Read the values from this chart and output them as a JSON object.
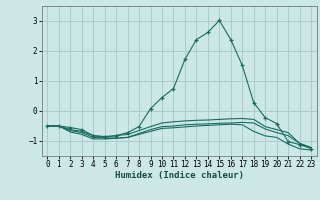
{
  "xlabel": "Humidex (Indice chaleur)",
  "ylabel": "",
  "xlim": [
    -0.5,
    23.5
  ],
  "ylim": [
    -1.5,
    3.5
  ],
  "yticks": [
    -1,
    0,
    1,
    2,
    3
  ],
  "xticks": [
    0,
    1,
    2,
    3,
    4,
    5,
    6,
    7,
    8,
    9,
    10,
    11,
    12,
    13,
    14,
    15,
    16,
    17,
    18,
    19,
    20,
    21,
    22,
    23
  ],
  "bg_color": "#cce8e6",
  "grid_color": "#aaccca",
  "line_color": "#1a6b5e",
  "series": [
    {
      "x": [
        0,
        1,
        2,
        3,
        4,
        5,
        6,
        7,
        8,
        9,
        10,
        11,
        12,
        13,
        14,
        15,
        16,
        17,
        18,
        19,
        20,
        21,
        22,
        23
      ],
      "y": [
        -0.5,
        -0.5,
        -0.55,
        -0.62,
        -0.82,
        -0.88,
        -0.82,
        -0.72,
        -0.52,
        0.08,
        0.45,
        0.75,
        1.72,
        2.38,
        2.62,
        3.02,
        2.38,
        1.52,
        0.28,
        -0.22,
        -0.42,
        -1.02,
        -1.12,
        -1.25
      ],
      "marker": "+"
    },
    {
      "x": [
        0,
        1,
        2,
        3,
        4,
        5,
        6,
        7,
        8,
        9,
        10,
        11,
        12,
        13,
        14,
        15,
        16,
        17,
        18,
        19,
        20,
        21,
        22,
        23
      ],
      "y": [
        -0.5,
        -0.5,
        -0.62,
        -0.68,
        -0.82,
        -0.85,
        -0.82,
        -0.78,
        -0.65,
        -0.52,
        -0.4,
        -0.36,
        -0.33,
        -0.31,
        -0.3,
        -0.28,
        -0.26,
        -0.25,
        -0.28,
        -0.52,
        -0.62,
        -0.72,
        -1.08,
        -1.22
      ],
      "marker": null
    },
    {
      "x": [
        0,
        1,
        2,
        3,
        4,
        5,
        6,
        7,
        8,
        9,
        10,
        11,
        12,
        13,
        14,
        15,
        16,
        17,
        18,
        19,
        20,
        21,
        22,
        23
      ],
      "y": [
        -0.5,
        -0.5,
        -0.65,
        -0.72,
        -0.88,
        -0.9,
        -0.9,
        -0.88,
        -0.75,
        -0.62,
        -0.52,
        -0.5,
        -0.46,
        -0.44,
        -0.43,
        -0.41,
        -0.4,
        -0.38,
        -0.4,
        -0.6,
        -0.72,
        -0.82,
        -1.08,
        -1.22
      ],
      "marker": null
    },
    {
      "x": [
        0,
        1,
        2,
        3,
        4,
        5,
        6,
        7,
        8,
        9,
        10,
        11,
        12,
        13,
        14,
        15,
        16,
        17,
        18,
        19,
        20,
        21,
        22,
        23
      ],
      "y": [
        -0.5,
        -0.5,
        -0.7,
        -0.78,
        -0.93,
        -0.93,
        -0.91,
        -0.88,
        -0.78,
        -0.68,
        -0.58,
        -0.56,
        -0.53,
        -0.5,
        -0.48,
        -0.46,
        -0.44,
        -0.46,
        -0.68,
        -0.83,
        -0.88,
        -1.1,
        -1.26,
        -1.3
      ],
      "marker": null
    }
  ]
}
